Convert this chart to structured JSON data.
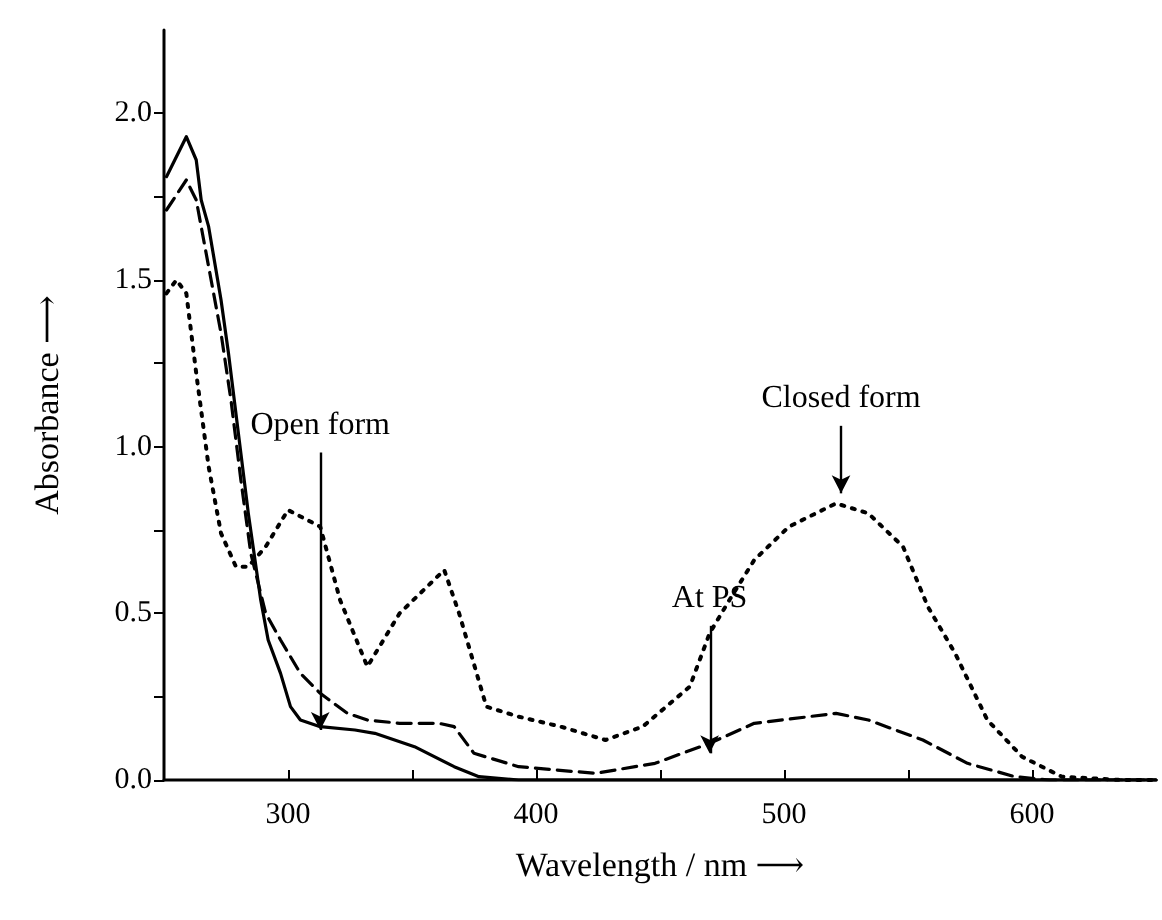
{
  "chart_data": {
    "type": "line",
    "xlabel": "Wavelength / nm ⟶",
    "ylabel": "Absorbance ⟶",
    "xlim": [
      250,
      650
    ],
    "xticks": [
      300,
      {
        "value": 350,
        "label": null
      },
      400,
      {
        "value": 450,
        "label": null
      },
      500,
      {
        "value": 550,
        "label": null
      },
      600
    ],
    "ylim": [
      0,
      2.25
    ],
    "yticks": [
      {
        "value": 0,
        "label": "0.0"
      },
      {
        "value": 0.25,
        "label": null
      },
      {
        "value": 0.5,
        "label": "0.5"
      },
      {
        "value": 0.75,
        "label": null
      },
      {
        "value": 1,
        "label": "1.0"
      },
      {
        "value": 1.25,
        "label": null
      },
      {
        "value": 1.5,
        "label": "1.5"
      },
      {
        "value": 1.75,
        "label": null
      },
      {
        "value": 2,
        "label": "2.0"
      }
    ],
    "grid": false,
    "marker": "none",
    "series": [
      {
        "color": "#000000",
        "line_style": "solid",
        "x": [
          251,
          259,
          263,
          265,
          268,
          273,
          276,
          280,
          284,
          289,
          292,
          297,
          301,
          305,
          313,
          327,
          335,
          351,
          367,
          377,
          393,
          450,
          550,
          650
        ],
        "values": [
          1.81,
          1.93,
          1.86,
          1.74,
          1.66,
          1.44,
          1.28,
          1.04,
          0.8,
          0.54,
          0.42,
          0.32,
          0.22,
          0.18,
          0.16,
          0.15,
          0.14,
          0.1,
          0.04,
          0.01,
          0,
          0,
          0,
          0
        ]
      },
      {
        "color": "#000000",
        "line_style": "dashed",
        "x": [
          251,
          259,
          263,
          268,
          273,
          277,
          281,
          285,
          291,
          297,
          305,
          313,
          324,
          332,
          345,
          361,
          367,
          375,
          393,
          408,
          424,
          448,
          470,
          488,
          521,
          534,
          556,
          574,
          593,
          607,
          650
        ],
        "values": [
          1.71,
          1.8,
          1.74,
          1.54,
          1.34,
          1.14,
          0.9,
          0.68,
          0.5,
          0.42,
          0.32,
          0.26,
          0.2,
          0.18,
          0.17,
          0.17,
          0.16,
          0.08,
          0.04,
          0.03,
          0.02,
          0.05,
          0.11,
          0.17,
          0.2,
          0.18,
          0.12,
          0.05,
          0.01,
          0,
          0
        ]
      },
      {
        "color": "#000000",
        "line_style": "dotted",
        "x": [
          251,
          255,
          259,
          263,
          268,
          273,
          279,
          284,
          291,
          300,
          313,
          321,
          332,
          345,
          363,
          369,
          380,
          393,
          410,
          428,
          443,
          462,
          470,
          478,
          488,
          502,
          521,
          534,
          548,
          558,
          569,
          582,
          596,
          612,
          636,
          650
        ],
        "values": [
          1.46,
          1.5,
          1.46,
          1.22,
          0.94,
          0.74,
          0.64,
          0.64,
          0.7,
          0.81,
          0.76,
          0.54,
          0.34,
          0.5,
          0.63,
          0.5,
          0.22,
          0.19,
          0.16,
          0.12,
          0.16,
          0.28,
          0.44,
          0.54,
          0.66,
          0.76,
          0.83,
          0.8,
          0.7,
          0.52,
          0.38,
          0.18,
          0.07,
          0.01,
          0,
          0
        ]
      }
    ],
    "annotations": [
      {
        "text": "Open form",
        "x": 313,
        "y": 0.15
      },
      {
        "text": "At PS",
        "x": 470,
        "y": 0.08
      },
      {
        "text": "Closed form",
        "x": 523,
        "y": 0.86
      }
    ]
  }
}
